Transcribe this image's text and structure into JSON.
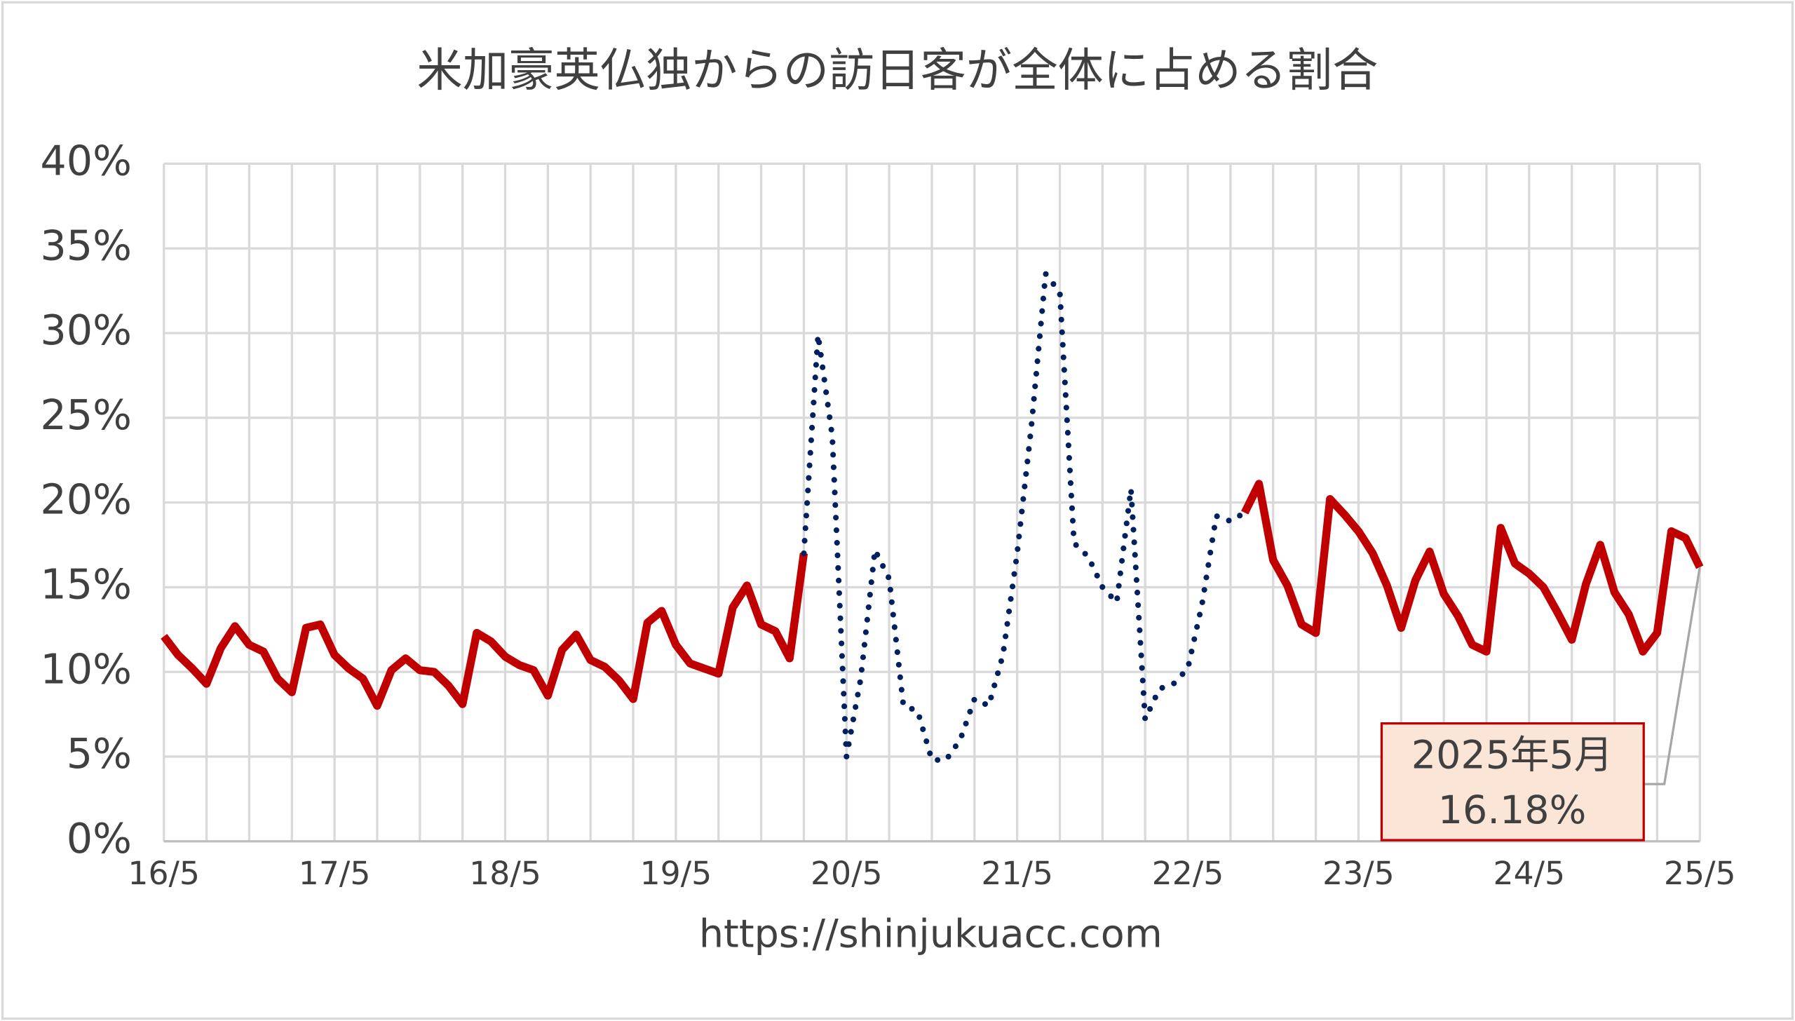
{
  "chart_data": {
    "type": "line",
    "title": "米加豪英仏独からの訪日客が全体に占める割合",
    "source": "https://shinjukuacc.com",
    "categories": [
      "16/5",
      null,
      null,
      null,
      null,
      null,
      null,
      null,
      null,
      null,
      null,
      null,
      "17/5",
      null,
      null,
      null,
      null,
      null,
      null,
      null,
      null,
      null,
      null,
      null,
      "18/5",
      null,
      null,
      null,
      null,
      null,
      null,
      null,
      null,
      null,
      null,
      null,
      "19/5",
      null,
      null,
      null,
      null,
      null,
      null,
      null,
      null,
      null,
      null,
      null,
      "20/5",
      null,
      null,
      null,
      null,
      null,
      null,
      null,
      null,
      null,
      null,
      null,
      "21/5",
      null,
      null,
      null,
      null,
      null,
      null,
      null,
      null,
      null,
      null,
      null,
      "22/5",
      null,
      null,
      null,
      null,
      null,
      null,
      null,
      null,
      null,
      null,
      null,
      "23/5",
      null,
      null,
      null,
      null,
      null,
      null,
      null,
      null,
      null,
      null,
      null,
      "24/5",
      null,
      null,
      null,
      null,
      null,
      null,
      null,
      null,
      null,
      null,
      null,
      "25/5"
    ],
    "series": [
      {
        "color": "#c00000",
        "style": "solid",
        "values": [
          12.1,
          11.0,
          10.2,
          9.3,
          11.4,
          12.7,
          11.6,
          11.2,
          9.6,
          8.8,
          12.6,
          12.8,
          11.0,
          10.2,
          9.6,
          8.0,
          10.1,
          10.8,
          10.1,
          10.0,
          9.2,
          8.1,
          12.3,
          11.8,
          10.9,
          10.4,
          10.1,
          8.6,
          11.3,
          12.2,
          10.7,
          10.3,
          9.5,
          8.4,
          12.9,
          13.6,
          11.6,
          10.5,
          10.2,
          9.9,
          13.8,
          15.1,
          12.8,
          12.4,
          10.8,
          17.0,
          null,
          null,
          null,
          null,
          null,
          null,
          null,
          null,
          null,
          null,
          null,
          null,
          null,
          null,
          null,
          null,
          null,
          null,
          null,
          null,
          null,
          null,
          null,
          null,
          null,
          null,
          null,
          null,
          null,
          null,
          19.4,
          21.1,
          16.6,
          15.1,
          12.8,
          12.3,
          20.2,
          19.3,
          18.3,
          17.0,
          15.1,
          12.6,
          15.4,
          17.1,
          14.6,
          13.3,
          11.6,
          11.2,
          18.5,
          16.4,
          15.8,
          15.0,
          13.5,
          11.9,
          15.2,
          17.5,
          14.7,
          13.4,
          11.2,
          12.3,
          18.3,
          17.9,
          16.18
        ]
      },
      {
        "color": "#002060",
        "style": "dotted",
        "values": [
          null,
          null,
          null,
          null,
          null,
          null,
          null,
          null,
          null,
          null,
          null,
          null,
          null,
          null,
          null,
          null,
          null,
          null,
          null,
          null,
          null,
          null,
          null,
          null,
          null,
          null,
          null,
          null,
          null,
          null,
          null,
          null,
          null,
          null,
          null,
          null,
          null,
          null,
          null,
          null,
          null,
          null,
          null,
          null,
          null,
          17.0,
          29.9,
          23.9,
          5.0,
          9.6,
          17.2,
          15.5,
          8.0,
          7.7,
          4.8,
          4.8,
          6.0,
          8.4,
          8.0,
          11.0,
          17.0,
          24.5,
          33.5,
          32.4,
          17.6,
          16.8,
          15.0,
          14.1,
          20.8,
          7.2,
          9.0,
          9.3,
          10.2,
          14.0,
          19.2,
          18.9,
          19.4,
          null,
          null,
          null,
          null,
          null,
          null,
          null,
          null,
          null,
          null,
          null,
          null,
          null,
          null,
          null,
          null,
          null,
          null,
          null,
          null,
          null,
          null,
          null,
          null,
          null,
          null,
          null,
          null,
          null,
          null,
          null,
          null
        ]
      }
    ],
    "annotation": {
      "label": "2025年5月",
      "value_label": "16.18%"
    },
    "ylim": [
      0,
      40
    ],
    "yticks": [
      {
        "value": 0,
        "label": "0%"
      },
      {
        "value": 5,
        "label": "5%"
      },
      {
        "value": 10,
        "label": "10%"
      },
      {
        "value": 15,
        "label": "15%"
      },
      {
        "value": 20,
        "label": "20%"
      },
      {
        "value": 25,
        "label": "25%"
      },
      {
        "value": 30,
        "label": "30%"
      },
      {
        "value": 35,
        "label": "35%"
      },
      {
        "value": 40,
        "label": "40%"
      }
    ],
    "grid": true
  }
}
